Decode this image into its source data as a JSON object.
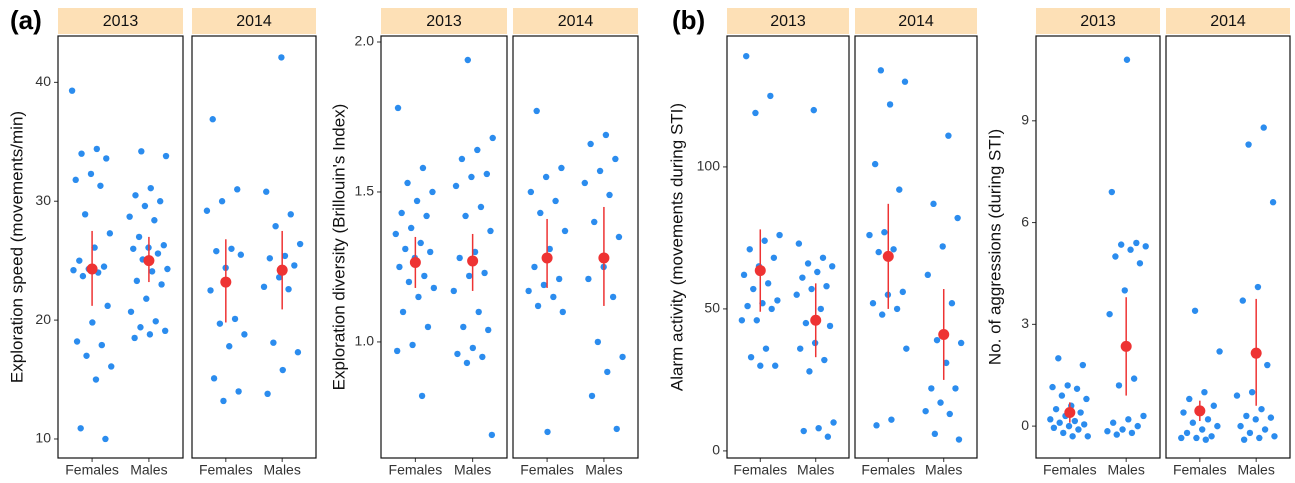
{
  "chart_data": [
    {
      "type": "strip",
      "label": "(a)",
      "ylabel": "Exploration speed (movements/min)",
      "ylim": [
        8.4,
        43.9
      ],
      "yticks": [
        10,
        20,
        30,
        40
      ],
      "categories": [
        "Females",
        "Males"
      ],
      "point_color": "#2b8cee",
      "mean_color": "#ee3333",
      "facets": [
        {
          "title": "2013",
          "points": [
            [
              39.3,
              34.4,
              34,
              33.6,
              32.3,
              31.8,
              31.3,
              28.9,
              27.3,
              26.1,
              25,
              24.5,
              24.3,
              24.2,
              24,
              23.7,
              21.2,
              19.8,
              18.2,
              17.9,
              17,
              16.1,
              15,
              10.9,
              10
            ],
            [
              34.2,
              33.8,
              31.1,
              30.5,
              30,
              29.6,
              28.7,
              28.4,
              27,
              26.3,
              26.1,
              26,
              25.6,
              25.1,
              24.3,
              24.1,
              23.3,
              23,
              21.8,
              20.7,
              19.9,
              19.4,
              19.1,
              18.8,
              18.5
            ]
          ],
          "mean": [
            24.3,
            25.0
          ],
          "lower": [
            21.2,
            23.2
          ],
          "upper": [
            27.5,
            27.0
          ]
        },
        {
          "title": "2014",
          "points": [
            [
              36.9,
              31.0,
              30.0,
              29.2,
              26,
              25.8,
              25.5,
              24.4,
              22.5,
              20.1,
              19.7,
              18.8,
              17.8,
              15.1,
              14,
              13.2
            ],
            [
              42.1,
              30.8,
              28.9,
              27.9,
              26.4,
              25.4,
              25.2,
              24.6,
              23.6,
              22.8,
              22.6,
              18.1,
              17.3,
              15.8,
              13.8
            ]
          ],
          "mean": [
            23.2,
            24.2
          ],
          "lower": [
            19.8,
            20.9
          ],
          "upper": [
            26.8,
            27.5
          ]
        }
      ]
    },
    {
      "type": "strip",
      "ylabel": "Exploration diversity (Brillouin's Index)",
      "ylim": [
        0.613,
        2.02
      ],
      "yticks": [
        {
          "value": 1,
          "label": "1.0"
        },
        1.5,
        {
          "value": 2,
          "label": "2.0"
        }
      ],
      "categories": [
        "Females",
        "Males"
      ],
      "point_color": "#2b8cee",
      "mean_color": "#ee3333",
      "facets": [
        {
          "title": "2013",
          "points": [
            [
              1.78,
              1.58,
              1.53,
              1.5,
              1.47,
              1.43,
              1.42,
              1.38,
              1.36,
              1.33,
              1.31,
              1.3,
              1.28,
              1.25,
              1.22,
              1.2,
              1.18,
              1.15,
              1.1,
              1.05,
              0.99,
              0.97,
              0.82
            ],
            [
              1.94,
              1.68,
              1.64,
              1.61,
              1.56,
              1.55,
              1.52,
              1.45,
              1.42,
              1.37,
              1.3,
              1.28,
              1.23,
              1.22,
              1.17,
              1.1,
              1.05,
              1.04,
              0.98,
              0.96,
              0.95,
              0.93,
              0.69
            ]
          ],
          "mean": [
            1.265,
            1.27
          ],
          "lower": [
            1.18,
            1.17
          ],
          "upper": [
            1.35,
            1.36
          ]
        },
        {
          "title": "2014",
          "points": [
            [
              1.77,
              1.58,
              1.55,
              1.5,
              1.47,
              1.43,
              1.37,
              1.31,
              1.25,
              1.21,
              1.19,
              1.17,
              1.15,
              1.12,
              1.1,
              0.7
            ],
            [
              1.69,
              1.66,
              1.61,
              1.57,
              1.53,
              1.49,
              1.4,
              1.35,
              1.25,
              1.21,
              1.15,
              1.0,
              0.95,
              0.9,
              0.82,
              0.71
            ]
          ],
          "mean": [
            1.28,
            1.28
          ],
          "lower": [
            1.18,
            1.12
          ],
          "upper": [
            1.41,
            1.45
          ]
        }
      ]
    },
    {
      "type": "strip",
      "label": "(b)",
      "ylabel": "Alarm activity (movements during STI)",
      "ylim": [
        -2.5,
        146.1
      ],
      "yticks": [
        0,
        50,
        100
      ],
      "categories": [
        "Females",
        "Males"
      ],
      "point_color": "#2b8cee",
      "mean_color": "#ee3333",
      "facets": [
        {
          "title": "2013",
          "points": [
            [
              139,
              125,
              119,
              76,
              74,
              71,
              68,
              65,
              62,
              59,
              57,
              53,
              52,
              51,
              50,
              46,
              46,
              36,
              33,
              30,
              30
            ],
            [
              120,
              73,
              68,
              66,
              65,
              63,
              61,
              58,
              57,
              55,
              50,
              45,
              44,
              38,
              36,
              32,
              28,
              10,
              8,
              7,
              5
            ]
          ],
          "mean": [
            63.5,
            46
          ],
          "lower": [
            49,
            33
          ],
          "upper": [
            78,
            59
          ]
        },
        {
          "title": "2014",
          "points": [
            [
              134,
              130,
              122,
              101,
              92,
              77,
              76,
              71,
              70,
              56,
              55,
              52,
              50,
              48,
              36,
              11,
              9
            ],
            [
              111,
              87,
              82,
              72,
              62,
              52,
              39,
              38,
              31,
              22,
              22,
              17,
              14,
              13,
              6,
              4
            ]
          ],
          "mean": [
            68.5,
            41
          ],
          "lower": [
            50,
            25
          ],
          "upper": [
            87,
            57
          ]
        }
      ]
    },
    {
      "type": "strip",
      "ylabel": "No. of aggressions (during STI)",
      "ylim": [
        -0.94,
        11.5
      ],
      "yticks": [
        0,
        3,
        6,
        9
      ],
      "categories": [
        "Females",
        "Males"
      ],
      "point_color": "#2b8cee",
      "mean_color": "#ee3333",
      "facets": [
        {
          "title": "2013",
          "points": [
            [
              2.0,
              1.8,
              1.2,
              1.15,
              1.1,
              0.9,
              0.8,
              0.6,
              0.5,
              0.4,
              0.3,
              0.2,
              0.15,
              0.1,
              0.05,
              0,
              -0.05,
              -0.1,
              -0.2,
              -0.3,
              -0.3
            ],
            [
              10.8,
              6.9,
              5.4,
              5.35,
              5.3,
              5.2,
              5.0,
              4.8,
              4.0,
              3.3,
              1.4,
              1.2,
              0.3,
              0.2,
              0.1,
              0,
              -0.1,
              -0.15,
              -0.2,
              -0.25
            ]
          ],
          "mean": [
            0.4,
            2.35
          ],
          "lower": [
            0.1,
            0.9
          ],
          "upper": [
            0.7,
            3.8
          ]
        },
        {
          "title": "2014",
          "points": [
            [
              3.4,
              2.2,
              1.0,
              0.8,
              0.6,
              0.5,
              0.4,
              0.2,
              0.1,
              0,
              -0.1,
              -0.2,
              -0.3,
              -0.35,
              -0.35,
              -0.4
            ],
            [
              8.8,
              8.3,
              6.6,
              4.1,
              3.7,
              1.8,
              1.0,
              0.9,
              0.5,
              0.3,
              0.25,
              0.2,
              0,
              -0.1,
              -0.2,
              -0.3,
              -0.35,
              -0.4
            ]
          ],
          "mean": [
            0.45,
            2.15
          ],
          "lower": [
            0.15,
            0.6
          ],
          "upper": [
            0.75,
            3.75
          ]
        }
      ]
    }
  ]
}
